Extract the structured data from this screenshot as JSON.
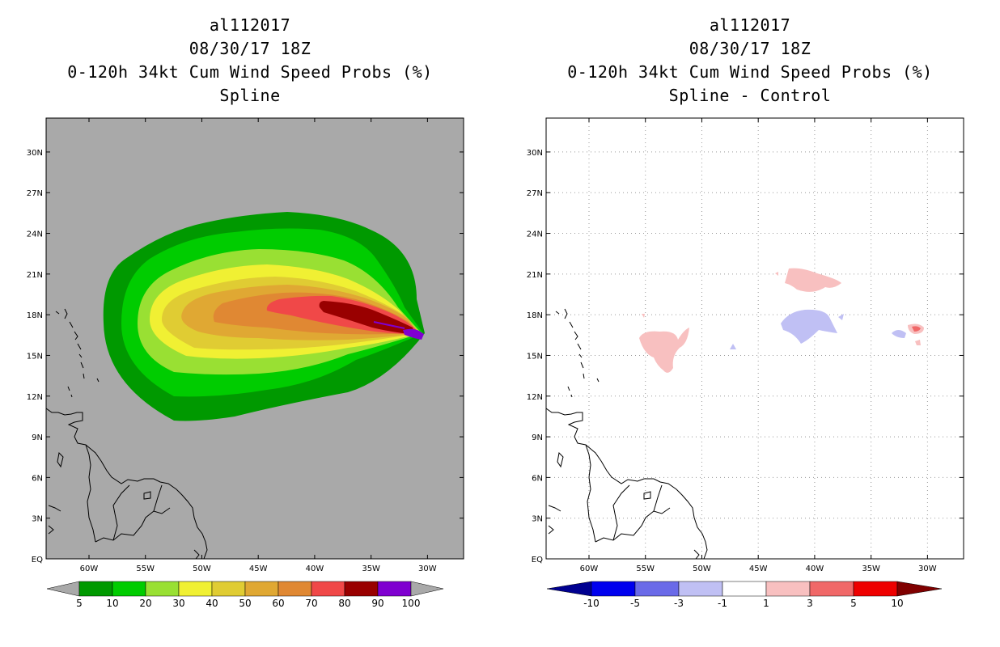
{
  "left_panel": {
    "title_lines": [
      "al112017",
      "08/30/17 18Z",
      "0-120h 34kt Cum Wind Speed Probs (%)",
      "Spline"
    ]
  },
  "right_panel": {
    "title_lines": [
      "al112017",
      "08/30/17 18Z",
      "0-120h 34kt Cum Wind Speed Probs (%)",
      "Spline - Control"
    ]
  },
  "colors": {
    "left_background": "#a9a9a9",
    "right_background": "#ffffff",
    "left_levels": [
      "#009900",
      "#00cc00",
      "#99e033",
      "#f0f033",
      "#e0cc33",
      "#e0a833",
      "#e08833",
      "#f04848",
      "#990000",
      "#7f00d0"
    ],
    "right_neg_colors": [
      "#000090",
      "#0000ee",
      "#6a6ae8",
      "#c0c0f4"
    ],
    "right_pos_colors": [
      "#f8c0c0",
      "#f06868",
      "#ee0000",
      "#800000"
    ]
  },
  "chart_data": [
    {
      "type": "heatmap",
      "title": "0-120h 34kt Cum Wind Speed Probs (%) - Spline",
      "storm": "al112017",
      "init_time": "08/30/17 18Z",
      "x_ticks": [
        "60W",
        "55W",
        "50W",
        "45W",
        "40W",
        "35W",
        "30W"
      ],
      "x_tick_values": [
        -60,
        -55,
        -50,
        -45,
        -40,
        -35,
        -30
      ],
      "y_ticks": [
        "EQ",
        "3N",
        "6N",
        "9N",
        "12N",
        "15N",
        "18N",
        "21N",
        "24N",
        "27N",
        "30N"
      ],
      "y_tick_values": [
        0,
        3,
        6,
        9,
        12,
        15,
        18,
        21,
        24,
        27,
        30
      ],
      "xlim": [
        -63.8,
        -26.8
      ],
      "ylim": [
        0,
        32.5
      ],
      "colorbar_levels": [
        "5",
        "10",
        "20",
        "30",
        "40",
        "50",
        "60",
        "70",
        "80",
        "90",
        "100"
      ],
      "track_tip": [
        -30.5,
        16.2
      ]
    },
    {
      "type": "heatmap",
      "title": "0-120h 34kt Cum Wind Speed Probs (%) - Spline - Control",
      "storm": "al112017",
      "init_time": "08/30/17 18Z",
      "x_ticks": [
        "60W",
        "55W",
        "50W",
        "45W",
        "40W",
        "35W",
        "30W"
      ],
      "x_tick_values": [
        -60,
        -55,
        -50,
        -45,
        -40,
        -35,
        -30
      ],
      "y_ticks": [
        "EQ",
        "3N",
        "6N",
        "9N",
        "12N",
        "15N",
        "18N",
        "21N",
        "24N",
        "27N",
        "30N"
      ],
      "y_tick_values": [
        0,
        3,
        6,
        9,
        12,
        15,
        18,
        21,
        24,
        27,
        30
      ],
      "xlim": [
        -63.8,
        -26.8
      ],
      "ylim": [
        0,
        32.5
      ],
      "grid": true,
      "colorbar_levels": [
        "-10",
        "-5",
        "-3",
        "-1",
        "1",
        "3",
        "5",
        "10"
      ]
    }
  ]
}
